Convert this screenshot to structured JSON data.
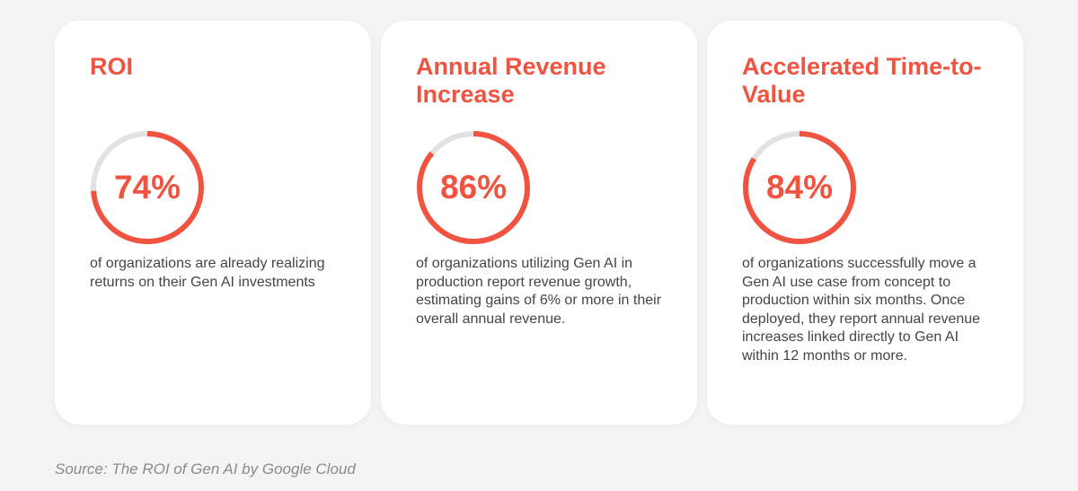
{
  "chart_data": [
    {
      "type": "pie",
      "title": "ROI",
      "value": 74,
      "label": "74%",
      "description": "of organizations are already realizing returns on their Gen AI investments"
    },
    {
      "type": "pie",
      "title": "Annual Revenue Increase",
      "value": 86,
      "label": "86%",
      "description": "of organizations utilizing Gen AI in production report revenue growth, estimating gains of 6% or more in their overall annual revenue."
    },
    {
      "type": "pie",
      "title": "Accelerated Time-to-Value",
      "value": 84,
      "label": "84%",
      "description": "of organizations successfully move a Gen AI use case from concept to production within six months. Once deployed, they report annual revenue increases linked directly to Gen AI within 12 months or more."
    }
  ],
  "source": "Source: The ROI of Gen AI by Google Cloud",
  "colors": {
    "accent": "#f05440",
    "track": "#e2e2e2",
    "card": "#ffffff",
    "background": "#f4f4f4",
    "text": "#454545"
  }
}
